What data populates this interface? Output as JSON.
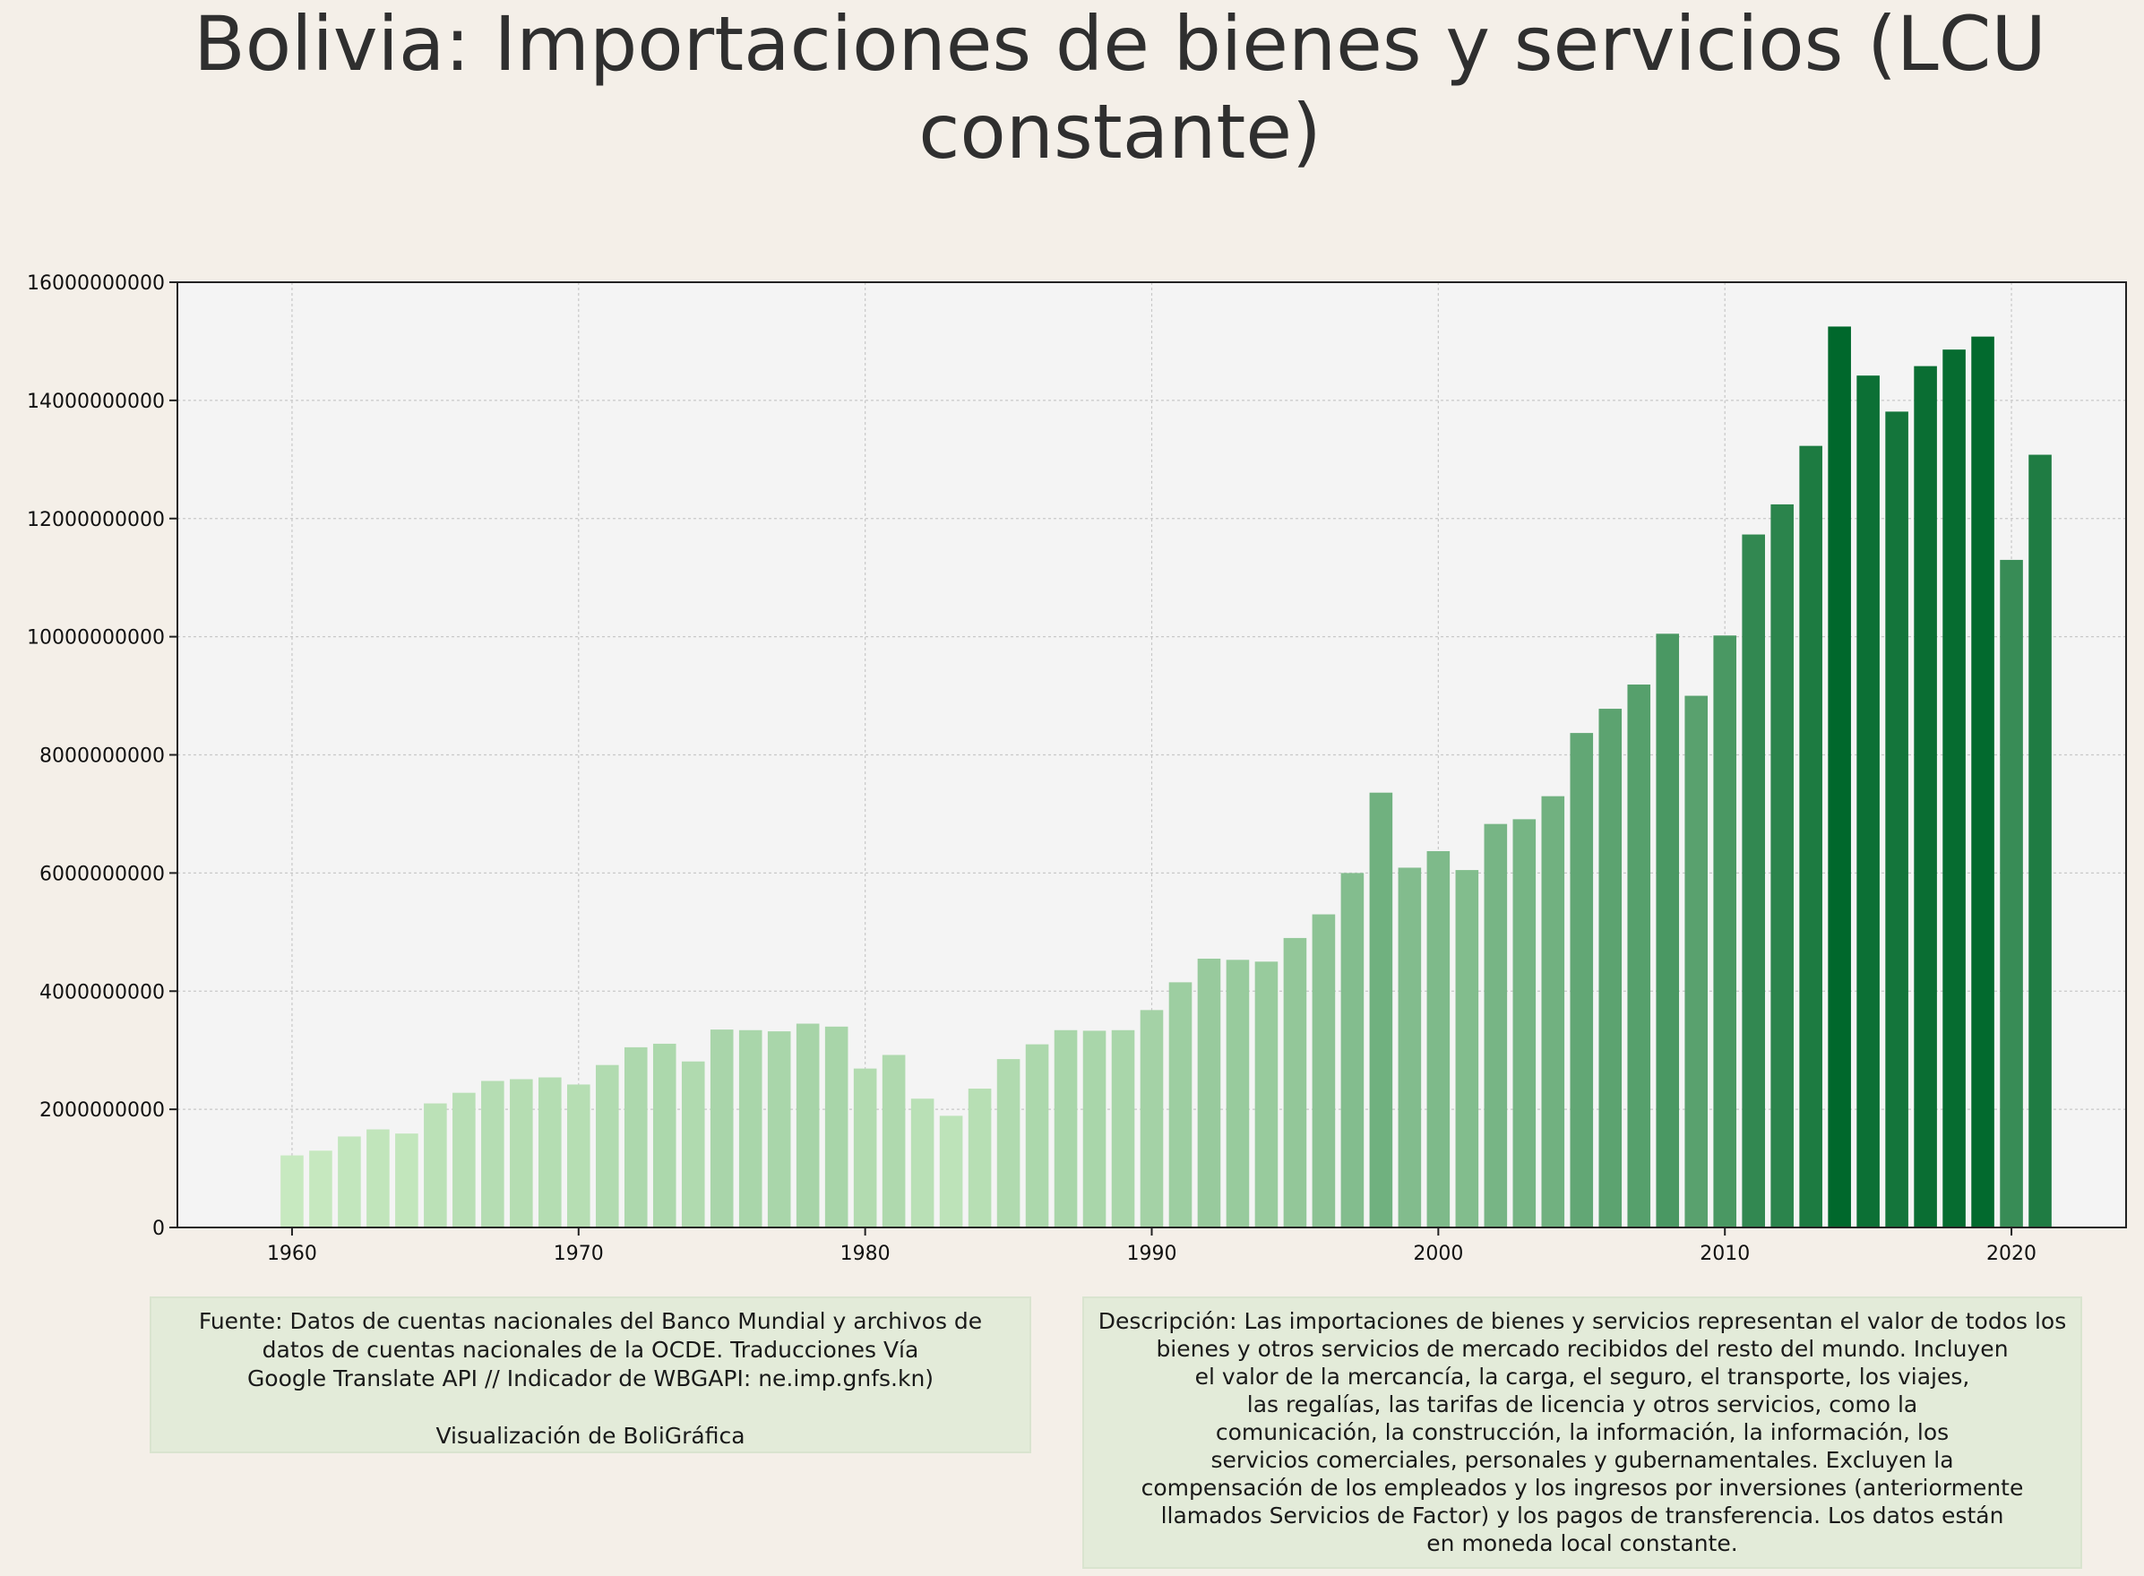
{
  "title": "Bolivia:  Importaciones de bienes y servicios (LCU constante)",
  "chart_data": {
    "type": "bar",
    "title": "Bolivia:  Importaciones de bienes y servicios (LCU constante)",
    "xlabel": "",
    "ylabel": "",
    "x": [
      1960,
      1961,
      1962,
      1963,
      1964,
      1965,
      1966,
      1967,
      1968,
      1969,
      1970,
      1971,
      1972,
      1973,
      1974,
      1975,
      1976,
      1977,
      1978,
      1979,
      1980,
      1981,
      1982,
      1983,
      1984,
      1985,
      1986,
      1987,
      1988,
      1989,
      1990,
      1991,
      1992,
      1993,
      1994,
      1995,
      1996,
      1997,
      1998,
      1999,
      2000,
      2001,
      2002,
      2003,
      2004,
      2005,
      2006,
      2007,
      2008,
      2009,
      2010,
      2011,
      2012,
      2013,
      2014,
      2015,
      2016,
      2017,
      2018,
      2019,
      2020,
      2021
    ],
    "values": [
      1220000000,
      1300000000,
      1540000000,
      1660000000,
      1590000000,
      2100000000,
      2280000000,
      2480000000,
      2510000000,
      2540000000,
      2420000000,
      2750000000,
      3050000000,
      3110000000,
      2810000000,
      3350000000,
      3340000000,
      3320000000,
      3450000000,
      3400000000,
      2690000000,
      2920000000,
      2180000000,
      1890000000,
      2350000000,
      2850000000,
      3100000000,
      3340000000,
      3330000000,
      3340000000,
      3680000000,
      4150000000,
      4550000000,
      4530000000,
      4500000000,
      4900000000,
      5300000000,
      6000000000,
      7360000000,
      6090000000,
      6370000000,
      6050000000,
      6830000000,
      6910000000,
      7300000000,
      8370000000,
      8780000000,
      9190000000,
      10050000000,
      9000000000,
      10020000000,
      11730000000,
      12240000000,
      13230000000,
      15250000000,
      14420000000,
      13810000000,
      14580000000,
      14860000000,
      15080000000,
      11300000000,
      13080000000
    ],
    "xlim": [
      1956,
      2024
    ],
    "ylim": [
      0,
      16000000000
    ],
    "xticks": [
      "1960",
      "1970",
      "1980",
      "1990",
      "2000",
      "2010",
      "2020"
    ],
    "yticks": [
      "0",
      "2000000000",
      "4000000000",
      "6000000000",
      "8000000000",
      "10000000000",
      "12000000000",
      "14000000000",
      "16000000000"
    ],
    "grid": true,
    "colors": {
      "light": "#c7e9c0",
      "dark": "#00682c",
      "plot_bg": "#f4f4f4"
    }
  },
  "source_note": "Fuente: Datos de cuentas nacionales del Banco Mundial y archivos de\ndatos de cuentas nacionales de la OCDE. Traducciones Vía\nGoogle Translate API // Indicador de WBGAPI: ne.imp.gnfs.kn)\n\nVisualización de BoliGráfica",
  "description_note": "Descripción: Las importaciones de bienes y servicios representan el valor de todos los\nbienes y otros servicios de mercado recibidos del resto del mundo. Incluyen\nel valor de la mercancía, la carga, el seguro, el transporte, los viajes,\nlas regalías, las tarifas de licencia y otros servicios, como la\ncomunicación, la construcción, la información, la información, los\nservicios comerciales, personales y gubernamentales. Excluyen la\ncompensación de los empleados y los ingresos por inversiones (anteriormente\nllamados Servicios de Factor) y los pagos de transferencia. Los datos están\nen moneda local constante."
}
